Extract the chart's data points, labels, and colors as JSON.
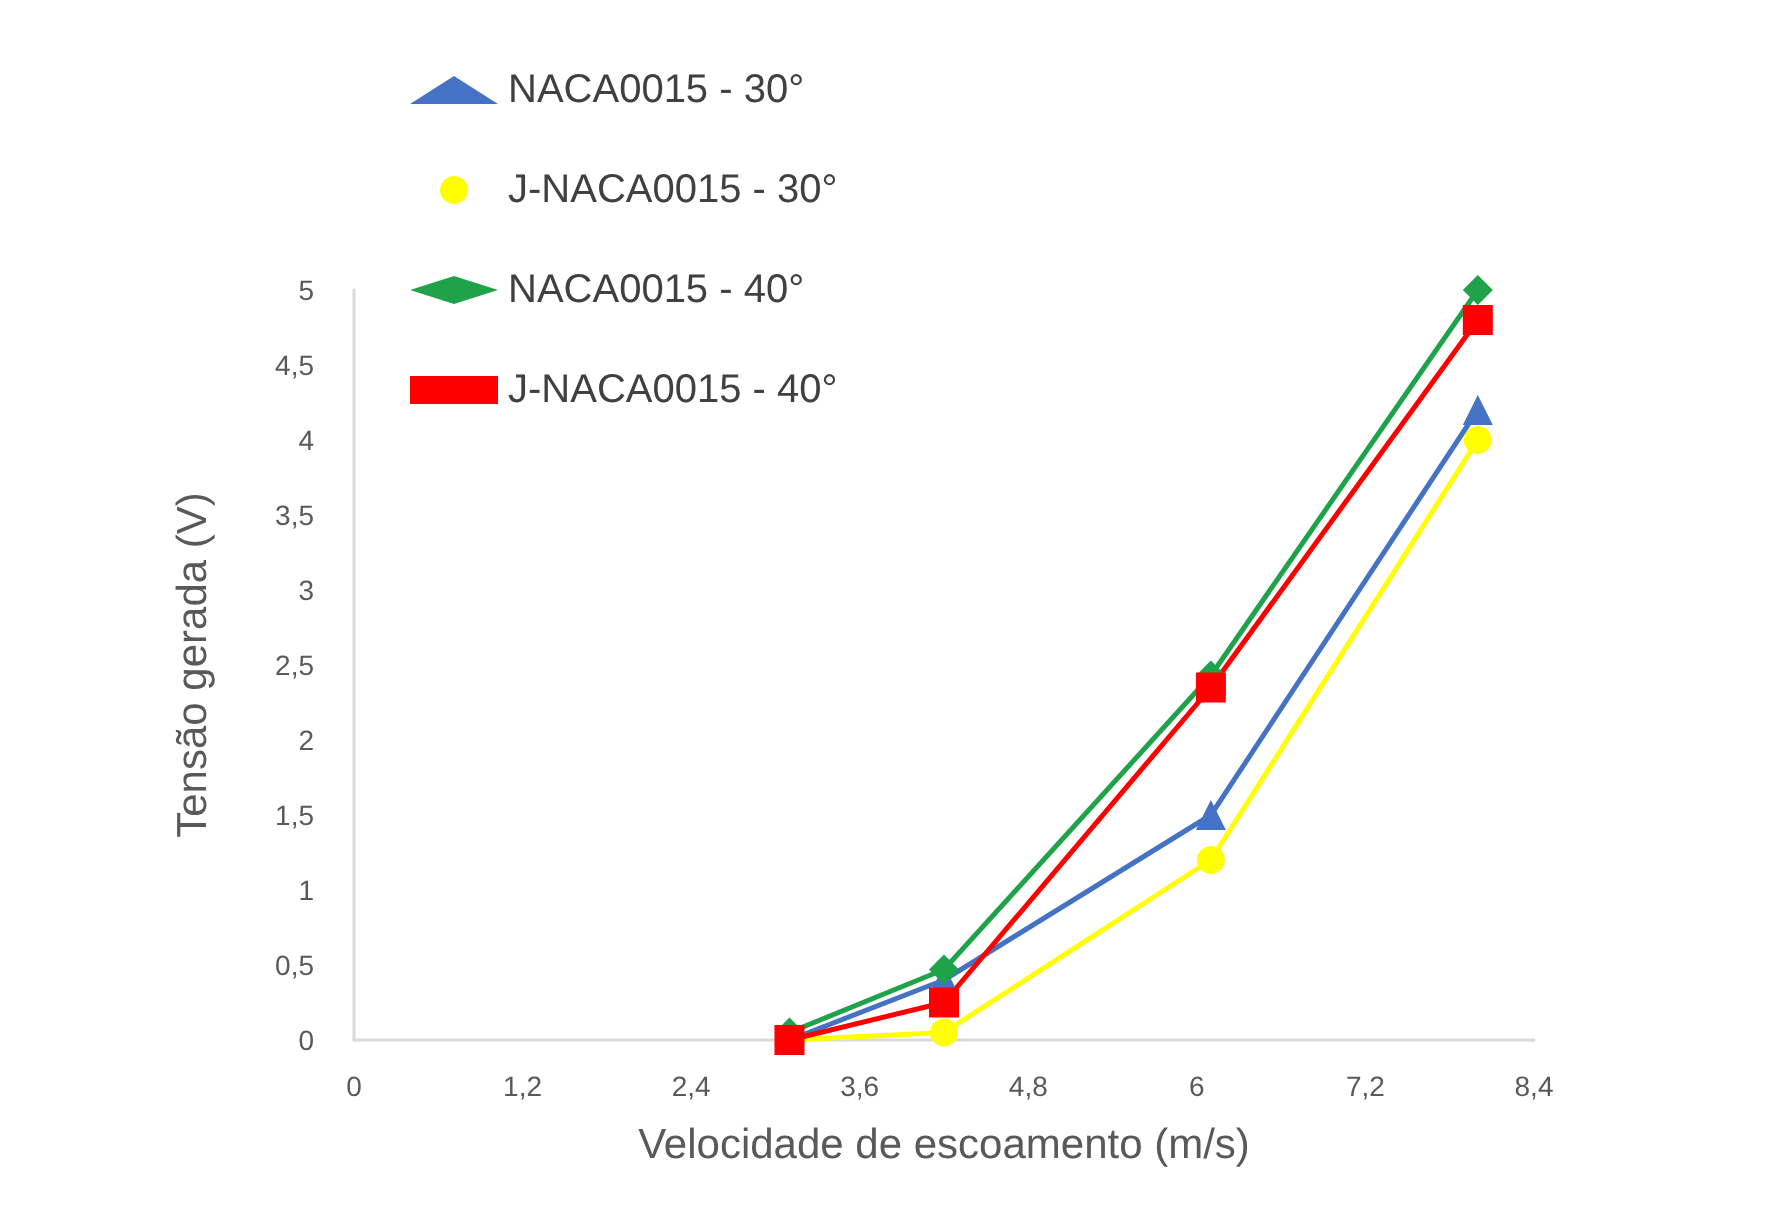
{
  "chart_data": {
    "type": "line",
    "xlabel": "Velocidade de escoamento (m/s)",
    "ylabel": "Tensão gerada (V)",
    "x": [
      3.1,
      4.2,
      6.1,
      8.0
    ],
    "series": [
      {
        "name": "NACA0015 - 30°",
        "color": "#4472c4",
        "marker": "triangle",
        "values": [
          0,
          0.4,
          1.5,
          4.2
        ]
      },
      {
        "name": "J-NACA0015 - 30°",
        "color": "#ffff00",
        "marker": "circle",
        "values": [
          0,
          0.05,
          1.2,
          4.0
        ]
      },
      {
        "name": "NACA0015 - 40°",
        "color": "#1fa34a",
        "marker": "diamond",
        "values": [
          0.05,
          0.47,
          2.43,
          5.0
        ]
      },
      {
        "name": "J-NACA0015 - 40°",
        "color": "#ff0000",
        "marker": "square",
        "values": [
          0,
          0.25,
          2.35,
          4.8
        ]
      }
    ],
    "xlim": [
      0,
      8.4
    ],
    "xticks": [
      0,
      {
        "value": 1.2,
        "label": "1,2"
      },
      {
        "value": 2.4,
        "label": "2,4"
      },
      {
        "value": 3.6,
        "label": "3,6"
      },
      {
        "value": 4.8,
        "label": "4,8"
      },
      6,
      {
        "value": 7.2,
        "label": "7,2"
      },
      {
        "value": 8.4,
        "label": "8,4"
      }
    ],
    "ylim": [
      0,
      5
    ],
    "yticks": [
      0,
      {
        "value": 0.5,
        "label": "0,5"
      },
      1,
      {
        "value": 1.5,
        "label": "1,5"
      },
      2,
      {
        "value": 2.5,
        "label": "2,5"
      },
      3,
      {
        "value": 3.5,
        "label": "3,5"
      },
      4,
      {
        "value": 4.5,
        "label": "4,5"
      },
      5
    ],
    "grid": false,
    "legend": "top left",
    "line_style": "solid"
  }
}
